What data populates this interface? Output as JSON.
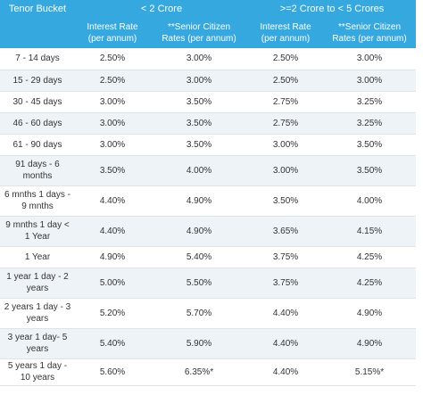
{
  "header": {
    "tenor_bucket": "Tenor Bucket",
    "group_low": "< 2 Crore",
    "group_high": ">=2 Crore to < 5 Crores",
    "interest_rate": "Interest Rate\n(per annum)",
    "senior_rate": "**Senior Citizen\nRates (per annum)"
  },
  "rows": [
    {
      "tenor": "7 - 14 days",
      "ir_low": "2.50%",
      "sc_low": "3.00%",
      "ir_high": "2.50%",
      "sc_high": "3.00%"
    },
    {
      "tenor": "15 - 29 days",
      "ir_low": "2.50%",
      "sc_low": "3.00%",
      "ir_high": "2.50%",
      "sc_high": "3.00%"
    },
    {
      "tenor": "30 - 45 days",
      "ir_low": "3.00%",
      "sc_low": "3.50%",
      "ir_high": "2.75%",
      "sc_high": "3.25%"
    },
    {
      "tenor": "46 - 60 days",
      "ir_low": "3.00%",
      "sc_low": "3.50%",
      "ir_high": "2.75%",
      "sc_high": "3.25%"
    },
    {
      "tenor": "61 - 90 days",
      "ir_low": "3.00%",
      "sc_low": "3.50%",
      "ir_high": "3.00%",
      "sc_high": "3.50%"
    },
    {
      "tenor": "91 days - 6 months",
      "ir_low": "3.50%",
      "sc_low": "4.00%",
      "ir_high": "3.00%",
      "sc_high": "3.50%"
    },
    {
      "tenor": "6 mnths 1 days - 9 mnths",
      "ir_low": "4.40%",
      "sc_low": "4.90%",
      "ir_high": "3.50%",
      "sc_high": "4.00%"
    },
    {
      "tenor": "9 mnths 1 day < 1 Year",
      "ir_low": "4.40%",
      "sc_low": "4.90%",
      "ir_high": "3.65%",
      "sc_high": "4.15%"
    },
    {
      "tenor": "1 Year",
      "ir_low": "4.90%",
      "sc_low": "5.40%",
      "ir_high": "3.75%",
      "sc_high": "4.25%"
    },
    {
      "tenor": "1 year 1 day - 2 years",
      "ir_low": "5.00%",
      "sc_low": "5.50%",
      "ir_high": "3.75%",
      "sc_high": "4.25%"
    },
    {
      "tenor": "2 years 1 day - 3 years",
      "ir_low": "5.20%",
      "sc_low": "5.70%",
      "ir_high": "4.40%",
      "sc_high": "4.90%"
    },
    {
      "tenor": "3 year 1 day- 5 years",
      "ir_low": "5.40%",
      "sc_low": "5.90%",
      "ir_high": "4.40%",
      "sc_high": "4.90%"
    },
    {
      "tenor": "5 years 1 day - 10 years",
      "ir_low": "5.60%",
      "sc_low": "6.35%*",
      "ir_high": "4.40%",
      "sc_high": "5.15%*"
    }
  ]
}
